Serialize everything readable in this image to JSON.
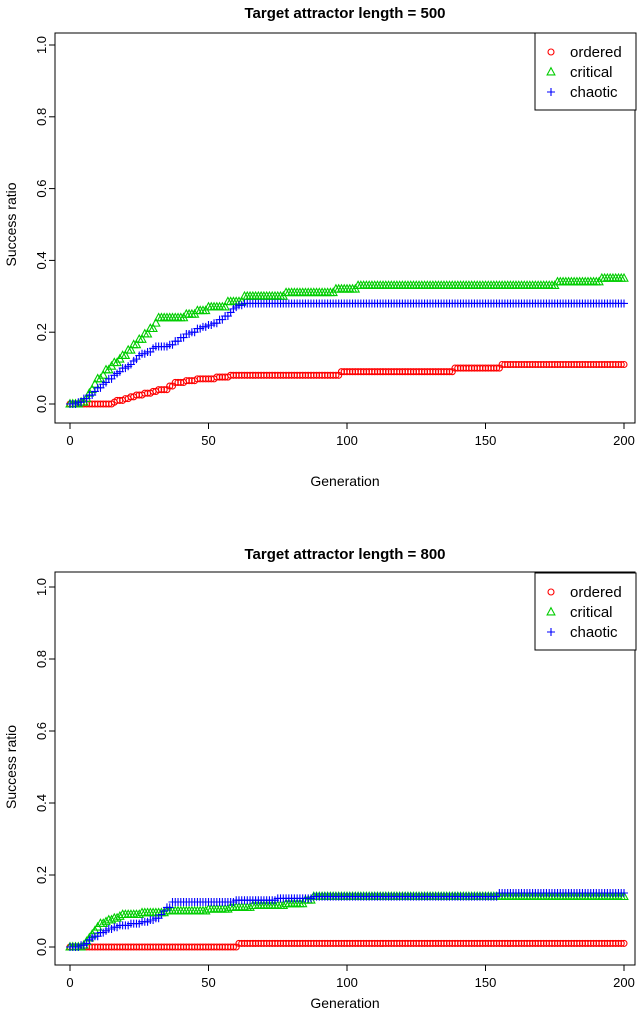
{
  "figure": {
    "background": "#ffffff",
    "panel_count": 2
  },
  "chart_data": [
    {
      "type": "scatter",
      "title": "Target attractor length = 500",
      "xlabel": "Generation",
      "ylabel": "Success ratio",
      "xlim": [
        0,
        200
      ],
      "ylim": [
        0,
        1
      ],
      "x_ticks": [
        0,
        50,
        100,
        150,
        200
      ],
      "y_ticks": [
        "0.0",
        "0.2",
        "0.4",
        "0.6",
        "0.8",
        "1.0"
      ],
      "grid": false,
      "legend_position": "top-right",
      "sampling": "one marker per generation, 0 through 200; steps are [generation, success_ratio] breakpoints held until the next breakpoint",
      "series": [
        {
          "name": "ordered",
          "marker": "circle",
          "color": "#FF0000",
          "steps": [
            [
              0,
              0
            ],
            [
              16,
              0.005
            ],
            [
              17,
              0.01
            ],
            [
              20,
              0.015
            ],
            [
              22,
              0.02
            ],
            [
              24,
              0.025
            ],
            [
              27,
              0.03
            ],
            [
              30,
              0.035
            ],
            [
              32,
              0.04
            ],
            [
              36,
              0.05
            ],
            [
              38,
              0.06
            ],
            [
              42,
              0.065
            ],
            [
              46,
              0.07
            ],
            [
              53,
              0.075
            ],
            [
              58,
              0.08
            ],
            [
              98,
              0.09
            ],
            [
              139,
              0.1
            ],
            [
              156,
              0.11
            ]
          ],
          "final_value": 0.11
        },
        {
          "name": "critical",
          "marker": "triangle",
          "color": "#00CD00",
          "steps": [
            [
              0,
              0
            ],
            [
              4,
              0.005
            ],
            [
              6,
              0.015
            ],
            [
              7,
              0.03
            ],
            [
              8,
              0.04
            ],
            [
              9,
              0.055
            ],
            [
              10,
              0.07
            ],
            [
              12,
              0.08
            ],
            [
              13,
              0.095
            ],
            [
              15,
              0.105
            ],
            [
              16,
              0.115
            ],
            [
              18,
              0.125
            ],
            [
              19,
              0.135
            ],
            [
              21,
              0.15
            ],
            [
              23,
              0.165
            ],
            [
              25,
              0.18
            ],
            [
              27,
              0.195
            ],
            [
              29,
              0.21
            ],
            [
              31,
              0.225
            ],
            [
              32,
              0.24
            ],
            [
              42,
              0.25
            ],
            [
              46,
              0.26
            ],
            [
              50,
              0.27
            ],
            [
              57,
              0.285
            ],
            [
              63,
              0.3
            ],
            [
              78,
              0.31
            ],
            [
              96,
              0.32
            ],
            [
              104,
              0.33
            ],
            [
              176,
              0.34
            ],
            [
              192,
              0.35
            ]
          ],
          "final_value": 0.35
        },
        {
          "name": "chaotic",
          "marker": "plus",
          "color": "#0000FF",
          "steps": [
            [
              0,
              0
            ],
            [
              3,
              0.005
            ],
            [
              5,
              0.015
            ],
            [
              7,
              0.025
            ],
            [
              9,
              0.035
            ],
            [
              10,
              0.045
            ],
            [
              12,
              0.055
            ],
            [
              13,
              0.06
            ],
            [
              14,
              0.07
            ],
            [
              16,
              0.08
            ],
            [
              17,
              0.085
            ],
            [
              18,
              0.09
            ],
            [
              19,
              0.1
            ],
            [
              21,
              0.105
            ],
            [
              22,
              0.11
            ],
            [
              23,
              0.12
            ],
            [
              24,
              0.125
            ],
            [
              25,
              0.135
            ],
            [
              26,
              0.14
            ],
            [
              28,
              0.145
            ],
            [
              30,
              0.155
            ],
            [
              31,
              0.16
            ],
            [
              36,
              0.165
            ],
            [
              38,
              0.175
            ],
            [
              40,
              0.185
            ],
            [
              42,
              0.195
            ],
            [
              44,
              0.2
            ],
            [
              46,
              0.21
            ],
            [
              48,
              0.215
            ],
            [
              50,
              0.22
            ],
            [
              52,
              0.225
            ],
            [
              54,
              0.235
            ],
            [
              56,
              0.245
            ],
            [
              58,
              0.255
            ],
            [
              59,
              0.265
            ],
            [
              60,
              0.27
            ],
            [
              61,
              0.275
            ],
            [
              63,
              0.28
            ]
          ],
          "final_value": 0.28
        }
      ]
    },
    {
      "type": "scatter",
      "title": "Target attractor length = 800",
      "xlabel": "Generation",
      "ylabel": "Success ratio",
      "xlim": [
        0,
        200
      ],
      "ylim": [
        0,
        1
      ],
      "x_ticks": [
        0,
        50,
        100,
        150,
        200
      ],
      "y_ticks": [
        "0.0",
        "0.2",
        "0.4",
        "0.6",
        "0.8",
        "1.0"
      ],
      "grid": false,
      "legend_position": "top-right",
      "sampling": "one marker per generation, 0 through 200; steps are [generation, success_ratio] breakpoints held until the next breakpoint",
      "series": [
        {
          "name": "ordered",
          "marker": "circle",
          "color": "#FF0000",
          "steps": [
            [
              0,
              0
            ],
            [
              61,
              0.01
            ]
          ],
          "final_value": 0.01
        },
        {
          "name": "critical",
          "marker": "triangle",
          "color": "#00CD00",
          "steps": [
            [
              0,
              0
            ],
            [
              5,
              0.005
            ],
            [
              6,
              0.015
            ],
            [
              7,
              0.025
            ],
            [
              8,
              0.035
            ],
            [
              9,
              0.045
            ],
            [
              10,
              0.055
            ],
            [
              11,
              0.065
            ],
            [
              13,
              0.07
            ],
            [
              14,
              0.075
            ],
            [
              16,
              0.08
            ],
            [
              18,
              0.085
            ],
            [
              19,
              0.09
            ],
            [
              26,
              0.095
            ],
            [
              35,
              0.1
            ],
            [
              50,
              0.105
            ],
            [
              58,
              0.11
            ],
            [
              66,
              0.115
            ],
            [
              78,
              0.12
            ],
            [
              85,
              0.13
            ],
            [
              88,
              0.14
            ]
          ],
          "final_value": 0.14
        },
        {
          "name": "chaotic",
          "marker": "plus",
          "color": "#0000FF",
          "steps": [
            [
              0,
              0
            ],
            [
              4,
              0.005
            ],
            [
              6,
              0.01
            ],
            [
              7,
              0.02
            ],
            [
              8,
              0.025
            ],
            [
              9,
              0.03
            ],
            [
              11,
              0.04
            ],
            [
              13,
              0.045
            ],
            [
              14,
              0.05
            ],
            [
              16,
              0.055
            ],
            [
              18,
              0.06
            ],
            [
              22,
              0.065
            ],
            [
              26,
              0.07
            ],
            [
              29,
              0.075
            ],
            [
              31,
              0.08
            ],
            [
              33,
              0.09
            ],
            [
              34,
              0.1
            ],
            [
              35,
              0.11
            ],
            [
              37,
              0.125
            ],
            [
              60,
              0.13
            ],
            [
              75,
              0.135
            ],
            [
              88,
              0.14
            ],
            [
              155,
              0.15
            ]
          ],
          "final_value": 0.15
        }
      ]
    }
  ],
  "legend": {
    "items": [
      {
        "label": "ordered",
        "symbol": "circle-icon",
        "color": "#FF0000"
      },
      {
        "label": "critical",
        "symbol": "triangle-icon",
        "color": "#00CD00"
      },
      {
        "label": "chaotic",
        "symbol": "plus-icon",
        "color": "#0000FF"
      }
    ]
  },
  "colors": {
    "axis": "#000000",
    "text": "#000000",
    "background": "#ffffff",
    "ordered": "#FF0000",
    "critical": "#00CD00",
    "chaotic": "#0000FF"
  }
}
